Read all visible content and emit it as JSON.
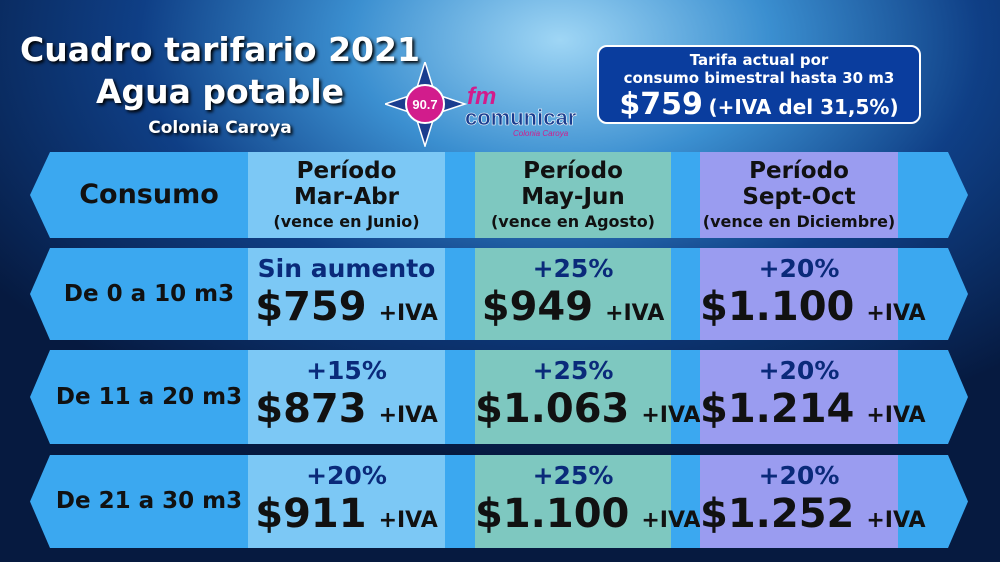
{
  "header": {
    "title_line1": "Cuadro tarifario 2021",
    "title_line2": "Agua potable",
    "subtitle": "Colonia Caroya"
  },
  "logo": {
    "frequency": "90.7",
    "brand_prefix": "fm",
    "brand": "comunicar",
    "place": "Colonia Caroya"
  },
  "current_rate": {
    "line1": "Tarifa actual por",
    "line2": "consumo bimestral hasta 30 m3",
    "price": "$759",
    "note": "(+IVA del 31,5%)"
  },
  "table": {
    "corner": "Consumo",
    "periods": [
      {
        "label": "Período",
        "period": "Mar-Abr",
        "due": "(vence en Junio)"
      },
      {
        "label": "Período",
        "period": "May-Jun",
        "due": "(vence en Agosto)"
      },
      {
        "label": "Período",
        "period": "Sept-Oct",
        "due": "(vence en Diciembre)"
      }
    ],
    "rows": [
      {
        "consumo": "De 0 a 10 m3",
        "cells": [
          {
            "change": "Sin aumento",
            "price": "$759",
            "tax": "+IVA"
          },
          {
            "change": "+25%",
            "price": "$949",
            "tax": "+IVA"
          },
          {
            "change": "+20%",
            "price": "$1.100",
            "tax": "+IVA"
          }
        ]
      },
      {
        "consumo": "De 11 a 20 m3",
        "cells": [
          {
            "change": "+15%",
            "price": "$873",
            "tax": "+IVA"
          },
          {
            "change": "+25%",
            "price": "$1.063",
            "tax": "+IVA"
          },
          {
            "change": "+20%",
            "price": "$1.214",
            "tax": "+IVA"
          }
        ]
      },
      {
        "consumo": "De 21 a 30 m3",
        "cells": [
          {
            "change": "+20%",
            "price": "$911",
            "tax": "+IVA"
          },
          {
            "change": "+25%",
            "price": "$1.100",
            "tax": "+IVA"
          },
          {
            "change": "+20%",
            "price": "$1.252",
            "tax": "+IVA"
          }
        ]
      }
    ]
  }
}
